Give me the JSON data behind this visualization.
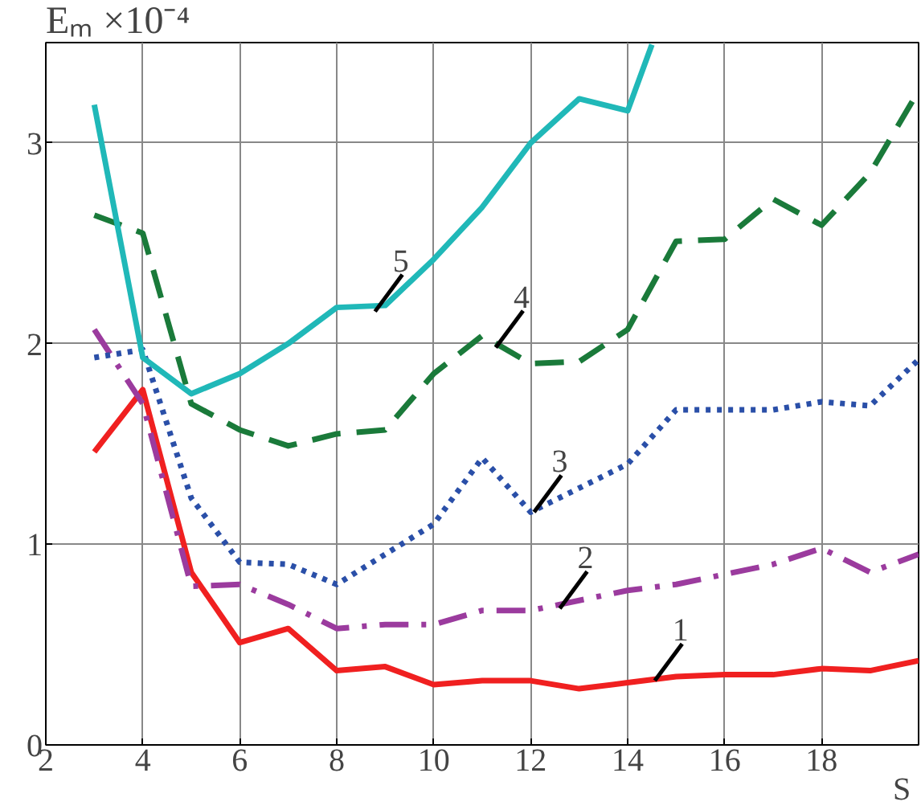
{
  "chart_data": {
    "type": "line",
    "xlabel": "S",
    "ylabel": "Eₘ ×10⁻⁴",
    "x": [
      3,
      4,
      5,
      6,
      7,
      8,
      9,
      10,
      11,
      12,
      13,
      14,
      15,
      16,
      17,
      18,
      19,
      20
    ],
    "series": [
      {
        "color": "#f02020",
        "line_style": "solid",
        "values": [
          1.46,
          1.77,
          0.86,
          0.51,
          0.58,
          0.37,
          0.39,
          0.3,
          0.32,
          0.32,
          0.28,
          0.31,
          0.34,
          0.35,
          0.35,
          0.38,
          0.37,
          0.42
        ]
      },
      {
        "color": "#9b3b9e",
        "line_style": "dashdot",
        "values": [
          2.07,
          1.7,
          0.79,
          0.8,
          0.7,
          0.58,
          0.6,
          0.6,
          0.67,
          0.67,
          0.72,
          0.77,
          0.8,
          0.85,
          0.9,
          0.98,
          0.86,
          0.95
        ]
      },
      {
        "color": "#2a4fa8",
        "line_style": "dotted",
        "values": [
          1.93,
          1.97,
          1.23,
          0.91,
          0.9,
          0.8,
          0.95,
          1.1,
          1.43,
          1.16,
          1.28,
          1.4,
          1.67,
          1.67,
          1.67,
          1.71,
          1.69,
          1.92
        ]
      },
      {
        "color": "#1a7a3a",
        "line_style": "dashed",
        "values": [
          2.64,
          2.55,
          1.7,
          1.57,
          1.49,
          1.55,
          1.57,
          1.85,
          2.04,
          1.9,
          1.91,
          2.07,
          2.51,
          2.52,
          2.72,
          2.59,
          2.85,
          3.26
        ]
      },
      {
        "color": "#20b8b8",
        "line_style": "solid",
        "x": [
          3,
          4,
          5,
          6,
          7,
          8,
          9,
          10,
          11,
          12,
          13,
          14,
          14.5
        ],
        "values": [
          3.19,
          1.93,
          1.75,
          1.85,
          2.0,
          2.18,
          2.19,
          2.42,
          2.68,
          3.0,
          3.22,
          3.16,
          3.49
        ]
      }
    ],
    "xlim": [
      2,
      20
    ],
    "ylim": [
      0,
      3.5
    ],
    "xticks": [
      2,
      4,
      6,
      8,
      10,
      12,
      14,
      16,
      18
    ],
    "yticks": [
      0,
      1,
      2,
      3
    ],
    "grid": true,
    "annotations": [
      {
        "text": "1",
        "x": 14.56,
        "y": 0.32
      },
      {
        "text": "2",
        "x": 12.6,
        "y": 0.68
      },
      {
        "text": "3",
        "x": 12.07,
        "y": 1.16
      },
      {
        "text": "4",
        "x": 11.28,
        "y": 1.98
      },
      {
        "text": "5",
        "x": 8.79,
        "y": 2.16
      }
    ]
  }
}
